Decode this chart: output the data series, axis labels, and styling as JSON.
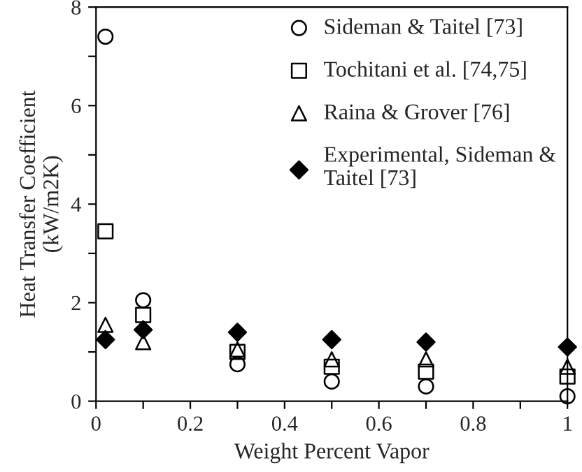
{
  "chart_data": {
    "type": "scatter",
    "xlabel": "Weight Percent Vapor",
    "ylabel": "Heat Transfer Coefficient\n(kW/m2K)",
    "x": [
      0.02,
      0.1,
      0.3,
      0.5,
      0.7,
      1
    ],
    "series": [
      {
        "name": "Sideman & Taitel [73]",
        "color": "#000000",
        "marker": "circle",
        "values": [
          7.4,
          2.05,
          0.75,
          0.4,
          0.3,
          0.1
        ]
      },
      {
        "name": "Tochitani et al. [74,75]",
        "color": "#000000",
        "marker": "square",
        "values": [
          3.45,
          1.75,
          1.0,
          0.7,
          0.6,
          0.5
        ]
      },
      {
        "name": "Raina & Grover [76]",
        "color": "#000000",
        "marker": "triangle",
        "values": [
          1.55,
          1.2,
          1.05,
          0.85,
          0.85,
          0.7
        ]
      },
      {
        "name": "Experimental, Sideman &\nTaitel [73]",
        "color": "#000000",
        "marker": "diamond",
        "values": [
          1.25,
          1.45,
          1.4,
          1.25,
          1.2,
          1.1
        ]
      }
    ],
    "xlim": [
      0,
      1
    ],
    "xticks": [
      0,
      {
        "value": 0.1,
        "label": null
      },
      0.2,
      {
        "value": 0.3,
        "label": null
      },
      0.4,
      {
        "value": 0.5,
        "label": null
      },
      0.6,
      {
        "value": 0.7,
        "label": null
      },
      0.8,
      {
        "value": 0.9,
        "label": null
      },
      1
    ],
    "ylim": [
      0,
      8
    ],
    "yticks": [
      0,
      {
        "value": 1,
        "label": null
      },
      2,
      {
        "value": 3,
        "label": null
      },
      4,
      {
        "value": 5,
        "label": null
      },
      6,
      {
        "value": 7,
        "label": null
      },
      8
    ],
    "grid": false,
    "legend": "top right"
  }
}
